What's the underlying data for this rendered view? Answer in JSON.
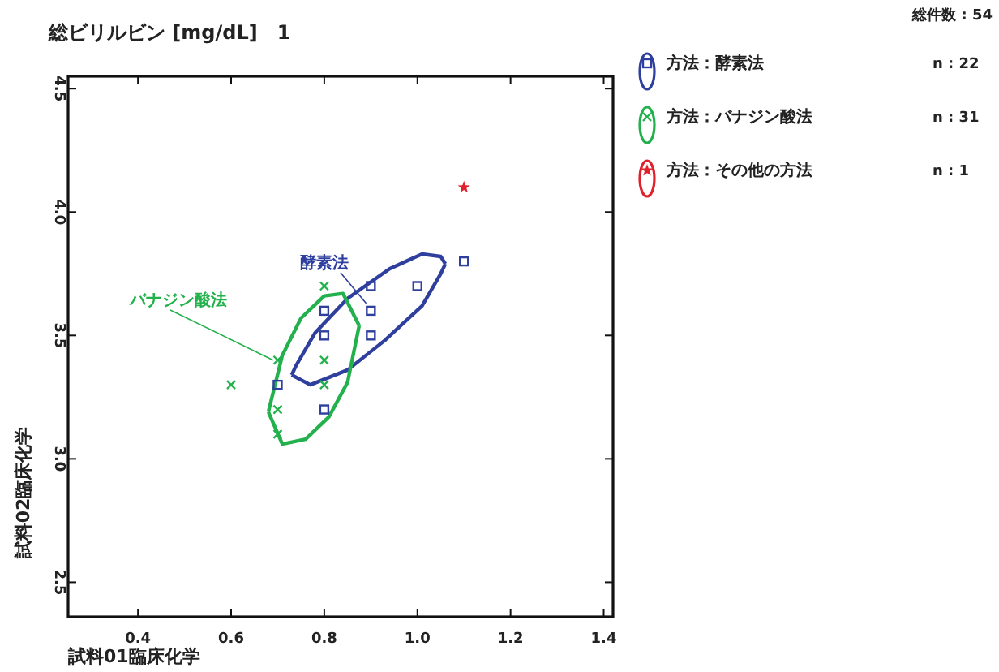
{
  "chart_data": {
    "type": "scatter",
    "title": "総ビリルビン [mg/dL]　1",
    "xlabel": "試料01臨床化学",
    "ylabel": "試料02臨床化学",
    "xlim": [
      0.25,
      1.42
    ],
    "ylim": [
      2.36,
      4.55
    ],
    "xticks": [
      0.4,
      0.6,
      0.8,
      {
        "value": 1,
        "label": "1.0"
      },
      1.2,
      1.4
    ],
    "yticks": [
      2.5,
      {
        "value": 3,
        "label": "3.0"
      },
      3.5,
      {
        "value": 4,
        "label": "4.0"
      },
      4.5
    ],
    "legend": "top right",
    "grid": false,
    "series": [
      {
        "name": "方法：酵素法",
        "color": "#2e3f9e",
        "marker": "square",
        "x": [
          1.1,
          0.9,
          1.0,
          0.8,
          0.9,
          0.8,
          0.9,
          0.7,
          0.8
        ],
        "values": [
          3.8,
          3.7,
          3.7,
          3.6,
          3.6,
          3.5,
          3.5,
          3.3,
          3.2
        ]
      },
      {
        "name": "方法：バナジン酸法",
        "color": "#22b14c",
        "marker": "cross",
        "x": [
          0.8,
          0.7,
          0.8,
          0.6,
          0.7,
          0.7,
          0.8
        ],
        "values": [
          3.7,
          3.4,
          3.4,
          3.3,
          3.2,
          3.1,
          3.3
        ]
      },
      {
        "name": "方法：その他の方法",
        "color": "#e0202a",
        "marker": "star",
        "x": [
          1.1
        ],
        "values": [
          4.1
        ]
      },
      {
        "type": "line",
        "color": "#2e3f9e",
        "x": [
          0.73,
          0.74,
          0.78,
          0.85,
          0.94,
          1.01,
          1.05,
          1.06
        ],
        "values": [
          3.34,
          3.38,
          3.51,
          3.65,
          3.77,
          3.83,
          3.82,
          3.79
        ]
      },
      {
        "type": "line",
        "color": "#2e3f9e",
        "x": [
          0.73,
          0.77,
          0.85,
          0.93,
          1.01,
          1.05,
          1.06
        ],
        "values": [
          3.34,
          3.3,
          3.36,
          3.48,
          3.62,
          3.75,
          3.79
        ]
      },
      {
        "type": "line",
        "color": "#22b14c",
        "x": [
          0.68,
          0.71,
          0.75,
          0.8,
          0.84,
          0.875
        ],
        "values": [
          3.19,
          3.42,
          3.57,
          3.66,
          3.67,
          3.54
        ]
      },
      {
        "type": "line",
        "color": "#22b14c",
        "x": [
          0.68,
          0.71,
          0.76,
          0.81,
          0.85,
          0.875
        ],
        "values": [
          3.19,
          3.06,
          3.08,
          3.17,
          3.31,
          3.54
        ]
      }
    ],
    "annotations": [
      {
        "text": "酵素法",
        "x": 0.89,
        "y": 3.63
      },
      {
        "text": "バナジン酸法",
        "x": 0.69,
        "y": 3.4
      },
      "総件数 : 54",
      "n : 22",
      "n : 31",
      "n : 1"
    ]
  }
}
